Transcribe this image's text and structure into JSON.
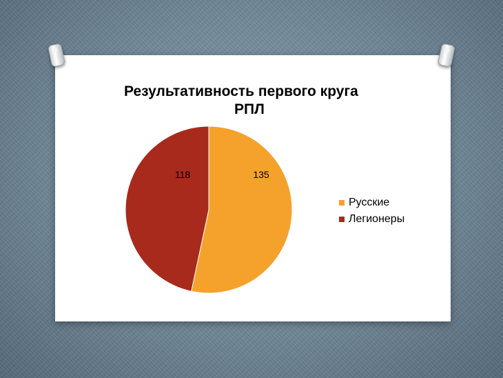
{
  "slide": {
    "background_color": "#ffffff"
  },
  "chart_data": {
    "type": "pie",
    "title_lines": [
      "Результативность первого круга",
      "РПЛ"
    ],
    "slices": [
      {
        "name": "Русские",
        "value": 135,
        "label": "135",
        "color": "#f5a22c"
      },
      {
        "name": "Легионеры",
        "value": 118,
        "label": "118",
        "color": "#a82a1d"
      }
    ],
    "start_angle_deg": 0,
    "direction": "clockwise",
    "legend_position": "right"
  }
}
